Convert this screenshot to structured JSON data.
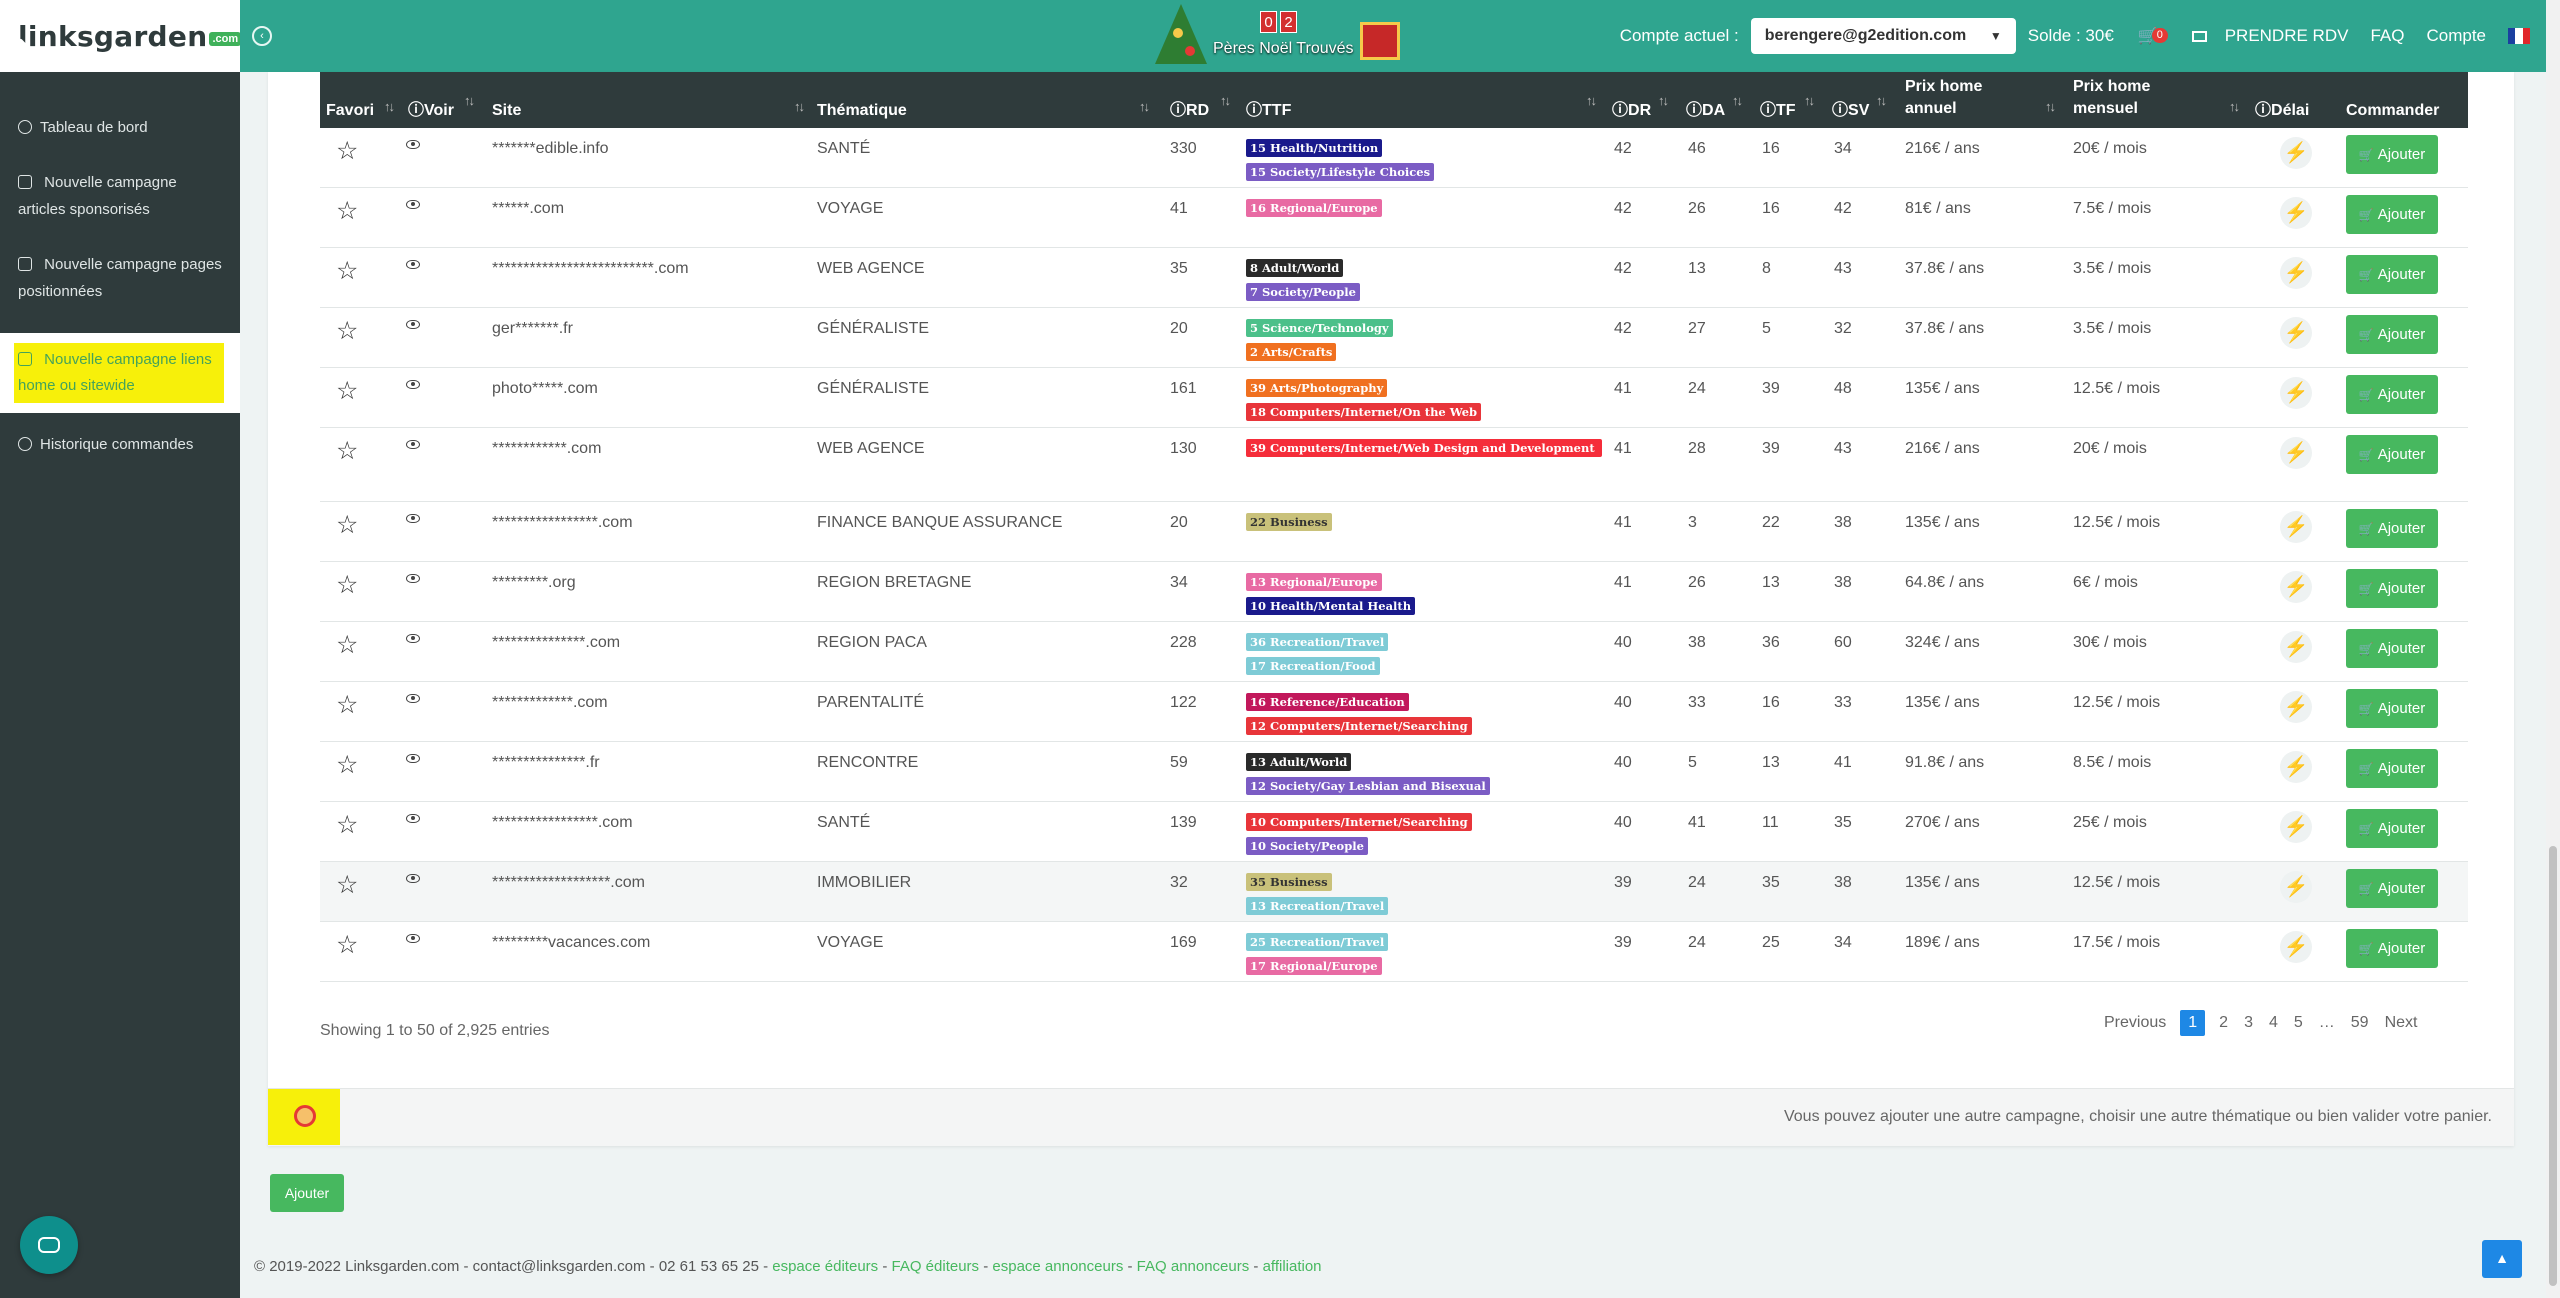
{
  "brand": {
    "name": "linksgarden",
    "suffix": ".com"
  },
  "sidebar": {
    "items": [
      {
        "label": "Tableau de bord",
        "icon": "dashboard-icon"
      },
      {
        "label": "Nouvelle campagne articles sponsorisés",
        "icon": "plus-square-icon"
      },
      {
        "label": "Nouvelle campagne pages positionnées",
        "icon": "plus-square-icon"
      },
      {
        "label": "Nouvelle campagne liens home ou sitewide",
        "icon": "plus-square-icon",
        "active": true
      },
      {
        "label": "Historique commandes",
        "icon": "history-icon"
      }
    ]
  },
  "topbar": {
    "santa_counter": {
      "digits": [
        "0",
        "2"
      ],
      "label": "Pères Noël Trouvés"
    },
    "account_label": "Compte actuel :",
    "account_value": "berengere@g2edition.com",
    "solde": "Solde : 30€",
    "cart_count": "0",
    "links": [
      "PRENDRE RDV",
      "FAQ",
      "Compte"
    ],
    "colors": {
      "bar": "#2fa58f",
      "accent_green": "#47b85f",
      "highlight": "#f7f00a"
    }
  },
  "table": {
    "headers": {
      "favori": "Favori",
      "voir": "Voir",
      "site": "Site",
      "thematique": "Thématique",
      "rd": "RD",
      "ttf": "TTF",
      "dr": "DR",
      "da": "DA",
      "tf": "TF",
      "sv": "SV",
      "prix_annuel_1": "Prix home",
      "prix_annuel_2": "annuel",
      "prix_mensuel_1": "Prix home",
      "prix_mensuel_2": "mensuel",
      "delai": "Délai",
      "commander": "Commander"
    },
    "button_label": "Ajouter",
    "rows": [
      {
        "site": "*******edible.info",
        "theme": "SANTÉ",
        "rd": "330",
        "dr": "42",
        "da": "46",
        "tf": "16",
        "sv": "34",
        "annuel": "216€ / ans",
        "mensuel": "20€ / mois",
        "tags": [
          {
            "text": "15 Health/Nutrition",
            "color": "#1a1a8c"
          },
          {
            "text": "15 Society/Lifestyle Choices",
            "color": "#7b5cc4"
          }
        ]
      },
      {
        "site": "******.com",
        "theme": "VOYAGE",
        "rd": "41",
        "dr": "42",
        "da": "26",
        "tf": "16",
        "sv": "42",
        "annuel": "81€ / ans",
        "mensuel": "7.5€ / mois",
        "tags": [
          {
            "text": "16 Regional/Europe",
            "color": "#e86aa3"
          }
        ]
      },
      {
        "site": "**************************.com",
        "theme": "WEB AGENCE",
        "rd": "35",
        "dr": "42",
        "da": "13",
        "tf": "8",
        "sv": "43",
        "annuel": "37.8€ / ans",
        "mensuel": "3.5€ / mois",
        "tags": [
          {
            "text": "8 Adult/World",
            "color": "#2a2a2a"
          },
          {
            "text": "7 Society/People",
            "color": "#7b5cc4"
          }
        ]
      },
      {
        "site": "ger*******.fr",
        "theme": "GÉNÉRALISTE",
        "rd": "20",
        "dr": "42",
        "da": "27",
        "tf": "5",
        "sv": "32",
        "annuel": "37.8€ / ans",
        "mensuel": "3.5€ / mois",
        "tags": [
          {
            "text": "5 Science/Technology",
            "color": "#4cc08a"
          },
          {
            "text": "2 Arts/Crafts",
            "color": "#f07020"
          }
        ]
      },
      {
        "site": "photo*****.com",
        "theme": "GÉNÉRALISTE",
        "rd": "161",
        "dr": "41",
        "da": "24",
        "tf": "39",
        "sv": "48",
        "annuel": "135€ / ans",
        "mensuel": "12.5€ / mois",
        "tags": [
          {
            "text": "39 Arts/Photography",
            "color": "#f07020"
          },
          {
            "text": "18 Computers/Internet/On the Web",
            "color": "#e8353a"
          }
        ]
      },
      {
        "site": "************.com",
        "theme": "WEB AGENCE",
        "rd": "130",
        "dr": "41",
        "da": "28",
        "tf": "39",
        "sv": "43",
        "annuel": "216€ / ans",
        "mensuel": "20€ / mois",
        "tags": [
          {
            "text": "39 Computers/Internet/Web Design and Development",
            "color": "#f52d3a",
            "wide": true
          }
        ]
      },
      {
        "site": "*****************.com",
        "theme": "FINANCE BANQUE ASSURANCE",
        "rd": "20",
        "dr": "41",
        "da": "3",
        "tf": "22",
        "sv": "38",
        "annuel": "135€ / ans",
        "mensuel": "12.5€ / mois",
        "tags": [
          {
            "text": "22 Business",
            "color": "#c9c17a",
            "dark": true
          }
        ]
      },
      {
        "site": "*********.org",
        "theme": "REGION BRETAGNE",
        "rd": "34",
        "dr": "41",
        "da": "26",
        "tf": "13",
        "sv": "38",
        "annuel": "64.8€ / ans",
        "mensuel": "6€ / mois",
        "tags": [
          {
            "text": "13 Regional/Europe",
            "color": "#e86aa3"
          },
          {
            "text": "10 Health/Mental Health",
            "color": "#1a1a8c"
          }
        ]
      },
      {
        "site": "***************.com",
        "theme": "REGION PACA",
        "rd": "228",
        "dr": "40",
        "da": "38",
        "tf": "36",
        "sv": "60",
        "annuel": "324€ / ans",
        "mensuel": "30€ / mois",
        "tags": [
          {
            "text": "36 Recreation/Travel",
            "color": "#7ecbd6"
          },
          {
            "text": "17 Recreation/Food",
            "color": "#7ecbd6"
          }
        ]
      },
      {
        "site": "*************.com",
        "theme": "PARENTALITÉ",
        "rd": "122",
        "dr": "40",
        "da": "33",
        "tf": "16",
        "sv": "33",
        "annuel": "135€ / ans",
        "mensuel": "12.5€ / mois",
        "tags": [
          {
            "text": "16 Reference/Education",
            "color": "#c2185b"
          },
          {
            "text": "12 Computers/Internet/Searching",
            "color": "#e8353a"
          }
        ]
      },
      {
        "site": "***************.fr",
        "theme": "RENCONTRE",
        "rd": "59",
        "dr": "40",
        "da": "5",
        "tf": "13",
        "sv": "41",
        "annuel": "91.8€ / ans",
        "mensuel": "8.5€ / mois",
        "tags": [
          {
            "text": "13 Adult/World",
            "color": "#2a2a2a"
          },
          {
            "text": "12 Society/Gay Lesbian and Bisexual",
            "color": "#7b5cc4"
          }
        ]
      },
      {
        "site": "*****************.com",
        "theme": "SANTÉ",
        "rd": "139",
        "dr": "40",
        "da": "41",
        "tf": "11",
        "sv": "35",
        "annuel": "270€ / ans",
        "mensuel": "25€ / mois",
        "tags": [
          {
            "text": "10 Computers/Internet/Searching",
            "color": "#e8353a"
          },
          {
            "text": "10 Society/People",
            "color": "#7b5cc4"
          }
        ]
      },
      {
        "site": "*******************.com",
        "theme": "IMMOBILIER",
        "rd": "32",
        "dr": "39",
        "da": "24",
        "tf": "35",
        "sv": "38",
        "annuel": "135€ / ans",
        "mensuel": "12.5€ / mois",
        "highlight": true,
        "tags": [
          {
            "text": "35 Business",
            "color": "#c9c17a",
            "dark": true
          },
          {
            "text": "13 Recreation/Travel",
            "color": "#7ecbd6"
          }
        ]
      },
      {
        "site": "*********vacances.com",
        "theme": "VOYAGE",
        "rd": "169",
        "dr": "39",
        "da": "24",
        "tf": "25",
        "sv": "34",
        "annuel": "189€ / ans",
        "mensuel": "17.5€ / mois",
        "tags": [
          {
            "text": "25 Recreation/Travel",
            "color": "#7ecbd6"
          },
          {
            "text": "17 Regional/Europe",
            "color": "#e86aa3"
          }
        ]
      }
    ]
  },
  "table_info": "Showing 1 to 50 of 2,925 entries",
  "pagination": {
    "previous": "Previous",
    "pages": [
      "1",
      "2",
      "3",
      "4",
      "5",
      "…",
      "59"
    ],
    "next": "Next",
    "current": "1"
  },
  "panel_footer_message": "Vous pouvez ajouter une autre campagne, choisir une autre thématique ou bien valider votre panier.",
  "bottom_button": "Ajouter",
  "footer": {
    "copyright": "© 2019-2022 Linksgarden.com - contact@linksgarden.com - 02 61 53 65 25 -",
    "links": [
      "espace éditeurs",
      "FAQ éditeurs",
      "espace annonceurs",
      "FAQ annonceurs",
      "affiliation"
    ]
  }
}
